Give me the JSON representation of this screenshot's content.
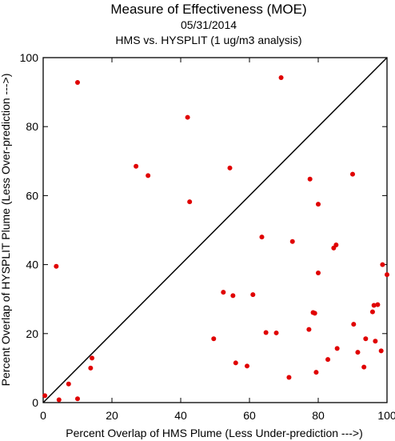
{
  "chart_data": {
    "type": "scatter",
    "title": "Measure of Effectiveness (MOE)",
    "subtitle_date": "05/31/2014",
    "subtitle_analysis": "HMS vs. HYSPLIT  (1 ug/m3 analysis)",
    "xlabel": "Percent Overlap of HMS Plume (Less Under-prediction --->)",
    "ylabel": "Percent Overlap of HYSPLIT Plume (Less Over-prediction --->)",
    "xlim": [
      0,
      100
    ],
    "ylim": [
      0,
      100
    ],
    "xticks": [
      0,
      20,
      40,
      60,
      80,
      100
    ],
    "yticks": [
      0,
      20,
      40,
      60,
      80,
      100
    ],
    "reference_line": "y = x",
    "point_color": "#e00000",
    "points": [
      [
        0.5,
        2.0
      ],
      [
        3.8,
        39.5
      ],
      [
        4.6,
        0.8
      ],
      [
        7.4,
        5.4
      ],
      [
        10.0,
        1.1
      ],
      [
        10.0,
        92.8
      ],
      [
        13.8,
        10.0
      ],
      [
        14.2,
        12.9
      ],
      [
        27.0,
        68.5
      ],
      [
        30.5,
        65.8
      ],
      [
        42.0,
        82.7
      ],
      [
        42.6,
        58.2
      ],
      [
        49.6,
        18.5
      ],
      [
        52.4,
        32.0
      ],
      [
        54.3,
        68.0
      ],
      [
        55.2,
        31.0
      ],
      [
        56.0,
        11.5
      ],
      [
        59.3,
        10.6
      ],
      [
        61.0,
        31.3
      ],
      [
        63.6,
        48.0
      ],
      [
        64.8,
        20.3
      ],
      [
        67.8,
        20.2
      ],
      [
        69.2,
        94.2
      ],
      [
        71.5,
        7.3
      ],
      [
        72.5,
        46.7
      ],
      [
        77.3,
        21.2
      ],
      [
        77.6,
        64.8
      ],
      [
        78.5,
        26.1
      ],
      [
        79.0,
        25.9
      ],
      [
        79.4,
        8.8
      ],
      [
        80.0,
        57.5
      ],
      [
        80.0,
        37.6
      ],
      [
        82.8,
        12.5
      ],
      [
        84.5,
        44.8
      ],
      [
        85.2,
        45.7
      ],
      [
        85.5,
        15.7
      ],
      [
        90.0,
        66.2
      ],
      [
        90.3,
        22.7
      ],
      [
        91.5,
        14.6
      ],
      [
        93.3,
        10.3
      ],
      [
        93.8,
        18.5
      ],
      [
        95.8,
        26.3
      ],
      [
        96.2,
        28.2
      ],
      [
        96.6,
        17.8
      ],
      [
        97.3,
        28.4
      ],
      [
        98.3,
        15.0
      ],
      [
        98.7,
        40.0
      ],
      [
        100.0,
        37.1
      ]
    ]
  }
}
